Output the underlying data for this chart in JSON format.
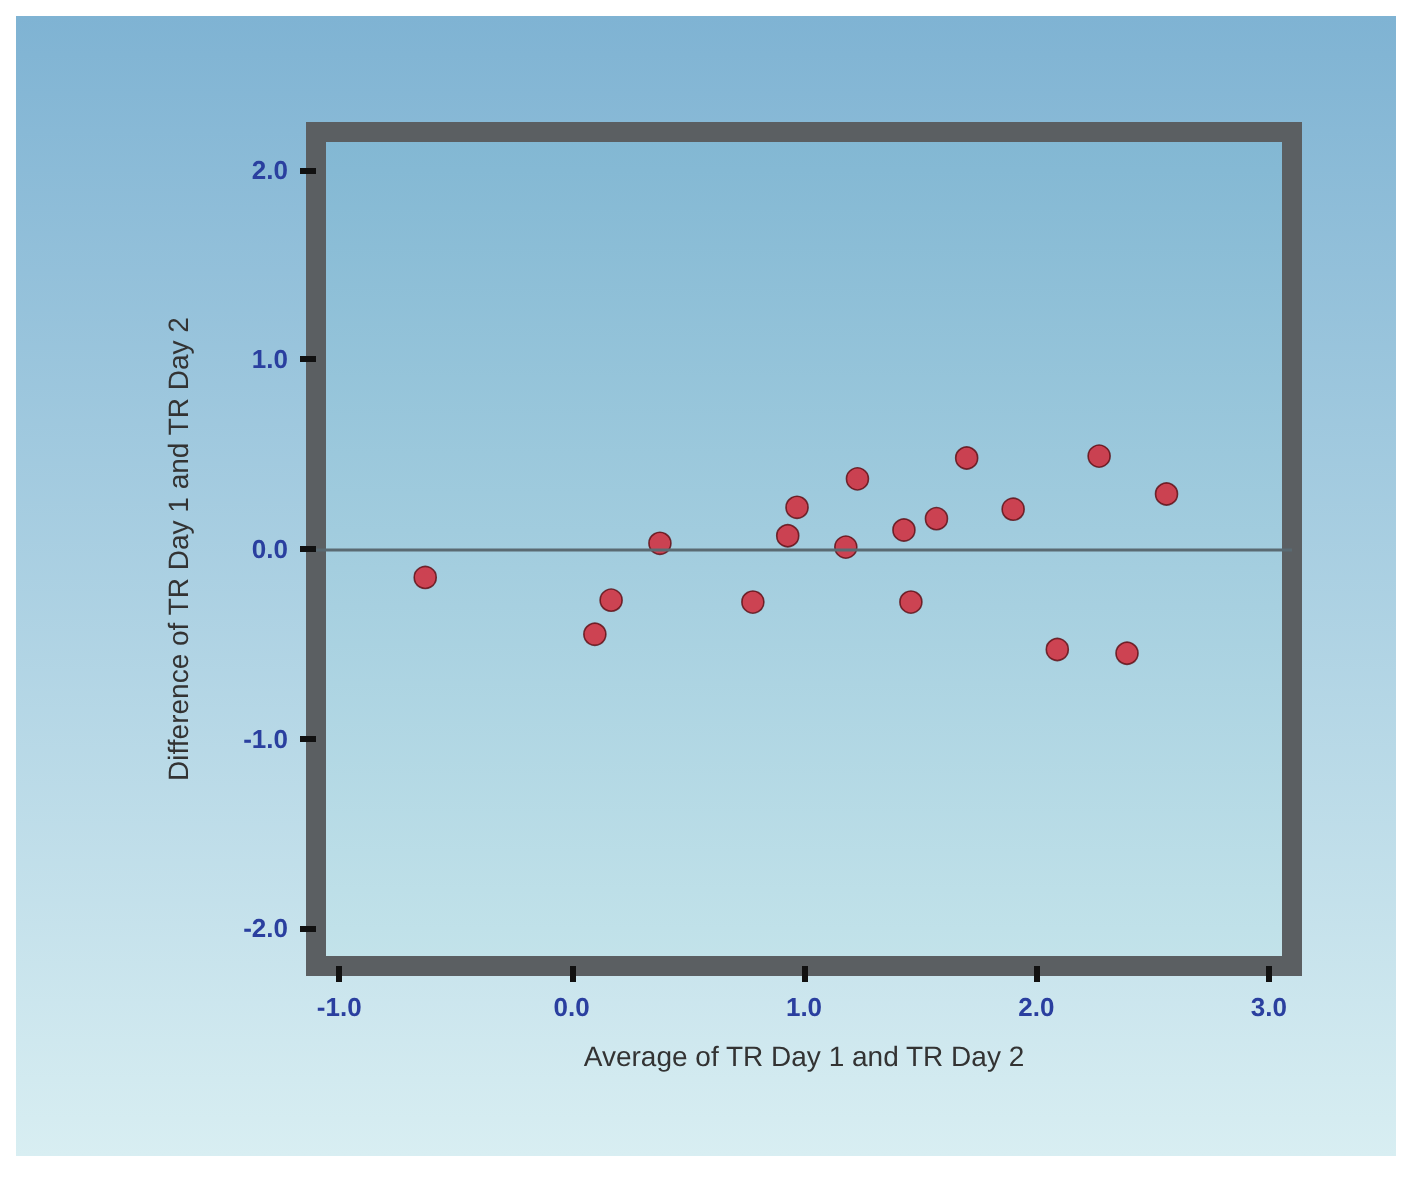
{
  "chart_data": {
    "type": "scatter",
    "xlabel": "Average of TR Day 1 and TR Day 2",
    "ylabel": "Difference of TR Day 1 and TR Day 2",
    "x": [
      -0.63,
      0.1,
      0.17,
      0.38,
      0.78,
      0.93,
      0.97,
      1.18,
      1.23,
      1.43,
      1.46,
      1.57,
      1.7,
      1.9,
      2.09,
      2.27,
      2.39,
      2.56
    ],
    "values": [
      -0.15,
      -0.45,
      -0.27,
      0.03,
      -0.28,
      0.07,
      0.22,
      0.01,
      0.37,
      0.1,
      -0.28,
      0.16,
      0.48,
      0.21,
      -0.53,
      0.49,
      -0.55,
      0.29
    ],
    "color": "#d61f2e",
    "xlim": [
      -1.1,
      3.1
    ],
    "ylim": [
      -2.2,
      2.2
    ],
    "xticks": [
      {
        "value": -1,
        "label": "-1.0"
      },
      {
        "value": 0,
        "label": "0.0"
      },
      {
        "value": 1,
        "label": "1.0"
      },
      {
        "value": 2,
        "label": "2.0"
      },
      {
        "value": 3,
        "label": "3.0"
      }
    ],
    "yticks": [
      {
        "value": -2,
        "label": "-2.0"
      },
      {
        "value": -1,
        "label": "-1.0"
      },
      {
        "value": 0,
        "label": "0.0"
      },
      {
        "value": 1,
        "label": "1.0"
      },
      {
        "value": 2,
        "label": "2.0"
      }
    ],
    "ref_lines": [
      {
        "axis": "y",
        "value": 0,
        "color": "#5a6a72"
      }
    ],
    "marker": "circle"
  }
}
